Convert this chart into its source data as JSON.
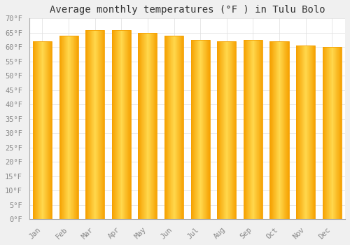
{
  "title": "Average monthly temperatures (°F ) in Tulu Bolo",
  "months": [
    "Jan",
    "Feb",
    "Mar",
    "Apr",
    "May",
    "Jun",
    "Jul",
    "Aug",
    "Sep",
    "Oct",
    "Nov",
    "Dec"
  ],
  "values": [
    62.0,
    64.0,
    66.0,
    66.0,
    65.0,
    64.0,
    62.5,
    62.0,
    62.5,
    62.0,
    60.5,
    60.0
  ],
  "bar_center_color": "#FFD84D",
  "bar_edge_color": "#F5A000",
  "background_color": "#f0f0f0",
  "plot_bg_color": "#ffffff",
  "grid_color": "#dddddd",
  "ylim": [
    0,
    70
  ],
  "yticks": [
    0,
    5,
    10,
    15,
    20,
    25,
    30,
    35,
    40,
    45,
    50,
    55,
    60,
    65,
    70
  ],
  "ytick_labels": [
    "0°F",
    "5°F",
    "10°F",
    "15°F",
    "20°F",
    "25°F",
    "30°F",
    "35°F",
    "40°F",
    "45°F",
    "50°F",
    "55°F",
    "60°F",
    "65°F",
    "70°F"
  ],
  "title_fontsize": 10,
  "tick_fontsize": 7.5,
  "bar_width": 0.72,
  "title_color": "#333333",
  "tick_color": "#888888"
}
